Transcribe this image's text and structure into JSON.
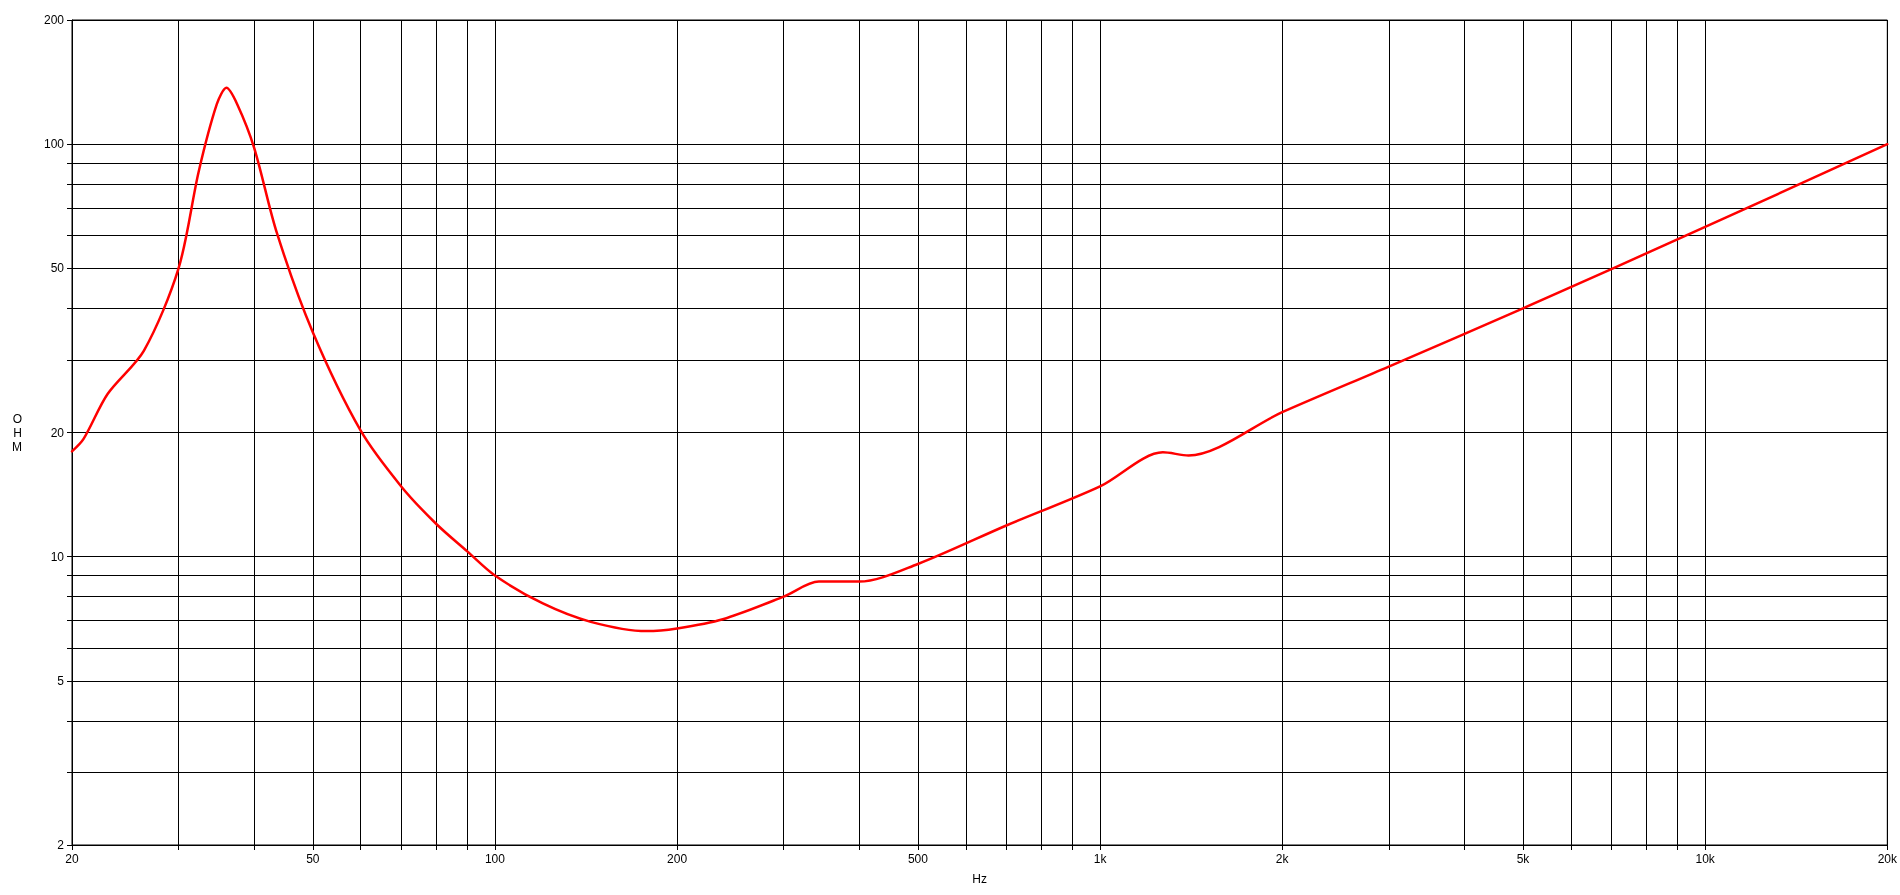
{
  "chart_data": {
    "type": "line",
    "xlabel": "Hz",
    "ylabel": "OHM",
    "log": "xy",
    "grid": true,
    "marker": "none",
    "line_style": "solid",
    "x": [
      20,
      20.9,
      22.9,
      26.3,
      30,
      32.4,
      34.7,
      36,
      37.5,
      40,
      43.6,
      50,
      60,
      70,
      80,
      90,
      100,
      120,
      144,
      178,
      200,
      238,
      300,
      343,
      400,
      500,
      700,
      1000,
      1270,
      1400,
      2000,
      3000,
      5000,
      10000,
      20000
    ],
    "series": [
      {
        "color": "#ff0000",
        "values": [
          18,
          19.3,
          24.8,
          31.6,
          50,
          86,
          125,
          137,
          125,
          98,
          61,
          35,
          20.2,
          14.8,
          12,
          10.3,
          9,
          7.7,
          6.95,
          6.6,
          6.7,
          7.05,
          8,
          8.7,
          8.7,
          9.6,
          11.9,
          14.8,
          17.9,
          17.6,
          22.4,
          28.9,
          40,
          63,
          100
        ]
      }
    ],
    "xlim": [
      20,
      20000
    ],
    "ylim": [
      2,
      200
    ],
    "xticks": [
      20,
      {
        "value": 30,
        "label": null
      },
      {
        "value": 40,
        "label": null
      },
      50,
      {
        "value": 60,
        "label": null
      },
      {
        "value": 70,
        "label": null
      },
      {
        "value": 80,
        "label": null
      },
      {
        "value": 90,
        "label": null
      },
      100,
      200,
      {
        "value": 300,
        "label": null
      },
      {
        "value": 400,
        "label": null
      },
      500,
      {
        "value": 600,
        "label": null
      },
      {
        "value": 700,
        "label": null
      },
      {
        "value": 800,
        "label": null
      },
      {
        "value": 900,
        "label": null
      },
      {
        "value": 1000,
        "label": "1k"
      },
      {
        "value": 2000,
        "label": "2k"
      },
      {
        "value": 3000,
        "label": null
      },
      {
        "value": 4000,
        "label": null
      },
      {
        "value": 5000,
        "label": "5k"
      },
      {
        "value": 6000,
        "label": null
      },
      {
        "value": 7000,
        "label": null
      },
      {
        "value": 8000,
        "label": null
      },
      {
        "value": 9000,
        "label": null
      },
      {
        "value": 10000,
        "label": "10k"
      },
      {
        "value": 20000,
        "label": "20k"
      }
    ],
    "yticks": [
      2,
      {
        "value": 3,
        "label": null
      },
      {
        "value": 4,
        "label": null
      },
      5,
      {
        "value": 6,
        "label": null
      },
      {
        "value": 7,
        "label": null
      },
      {
        "value": 8,
        "label": null
      },
      {
        "value": 9,
        "label": null
      },
      10,
      20,
      {
        "value": 30,
        "label": null
      },
      {
        "value": 40,
        "label": null
      },
      50,
      {
        "value": 60,
        "label": null
      },
      {
        "value": 70,
        "label": null
      },
      {
        "value": 80,
        "label": null
      },
      {
        "value": 90,
        "label": null
      },
      100,
      200
    ]
  }
}
